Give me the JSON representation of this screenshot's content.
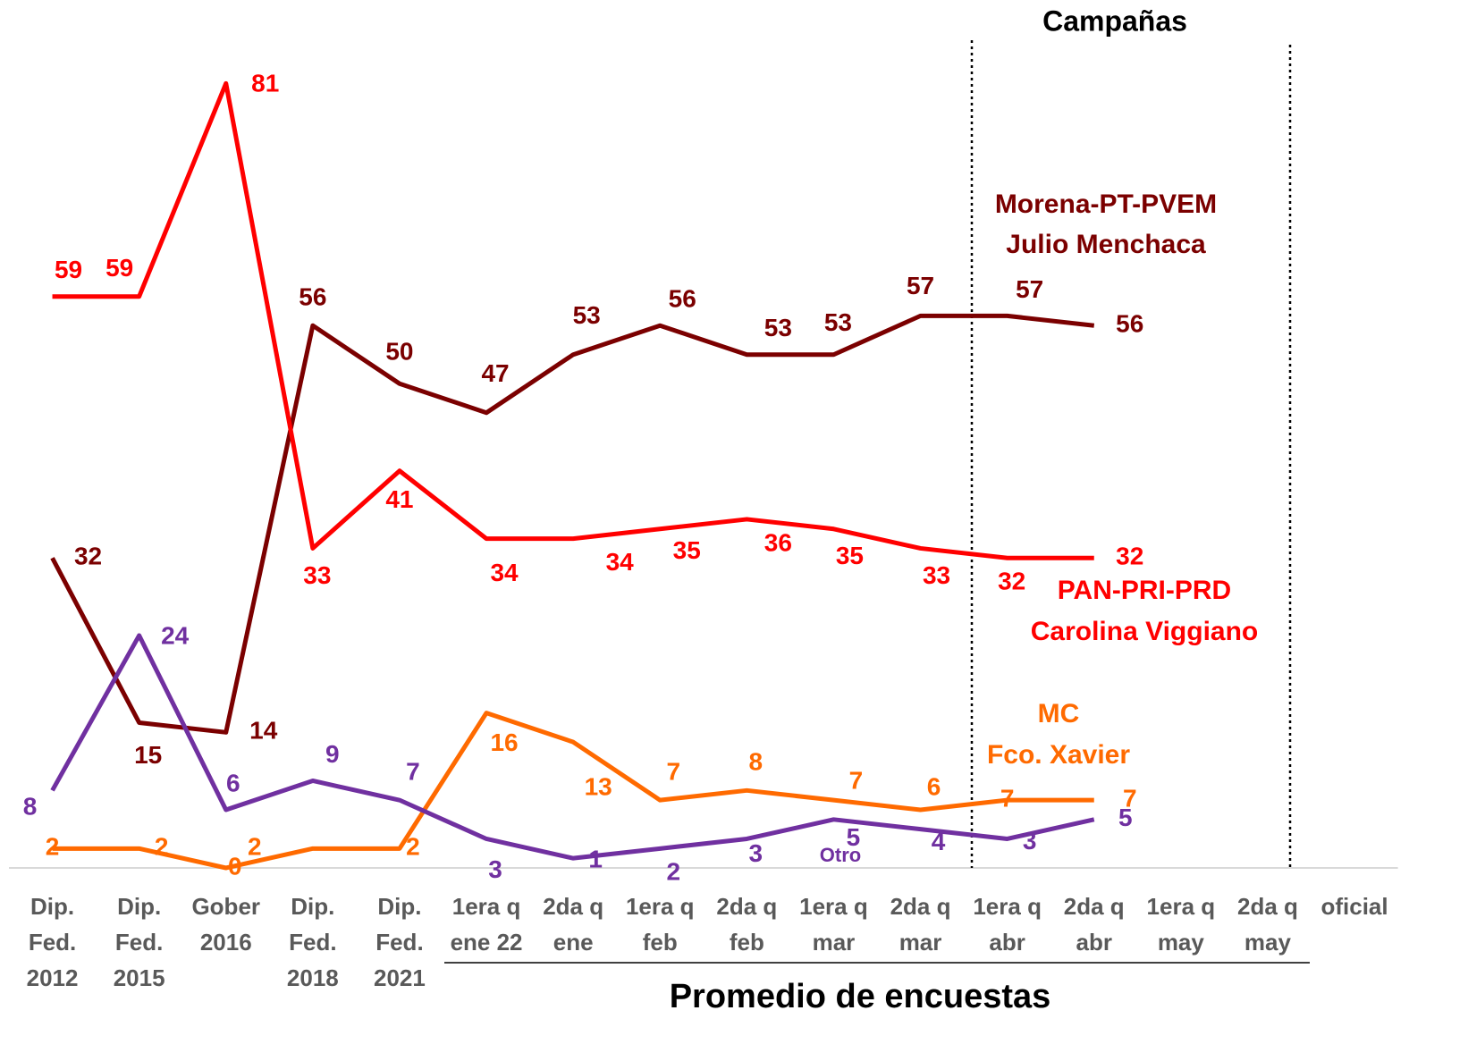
{
  "chart_data": {
    "type": "line",
    "title": "Campañas",
    "x_label": "Promedio de encuestas",
    "categories": [
      "Dip.\nFed.\n2012",
      "Dip.\nFed.\n2015",
      "Gober\n2016",
      "Dip.\nFed.\n2018",
      "Dip.\nFed.\n2021",
      "1era q\nene 22",
      "2da q\nene",
      "1era q\nfeb",
      "2da q\nfeb",
      "1era q\nmar",
      "2da q\nmar",
      "1era q\nabr",
      "2da q\nabr",
      "1era q\nmay",
      "2da q\nmay",
      "oficial"
    ],
    "ylim": [
      0,
      85
    ],
    "series": [
      {
        "name": "Morena-PT-PVEM\nJulio Menchaca",
        "color": "#7b0000",
        "values": [
          32,
          15,
          14,
          56,
          50,
          47,
          53,
          56,
          53,
          53,
          57,
          57,
          56,
          null,
          null,
          null
        ]
      },
      {
        "name": "PAN-PRI-PRD\nCarolina Viggiano",
        "color": "#ff0000",
        "values": [
          59,
          59,
          81,
          33,
          41,
          34,
          34,
          35,
          36,
          35,
          33,
          32,
          32,
          null,
          null,
          null
        ]
      },
      {
        "name": "MC\nFco. Xavier",
        "color": "#ff6a00",
        "values": [
          2,
          2,
          0,
          2,
          2,
          16,
          13,
          7,
          8,
          7,
          6,
          7,
          7,
          null,
          null,
          null
        ]
      },
      {
        "name": "Otro",
        "color": "#7030a0",
        "values": [
          8,
          24,
          6,
          9,
          7,
          3,
          1,
          2,
          3,
          5,
          4,
          3,
          5,
          null,
          null,
          null
        ]
      }
    ]
  }
}
